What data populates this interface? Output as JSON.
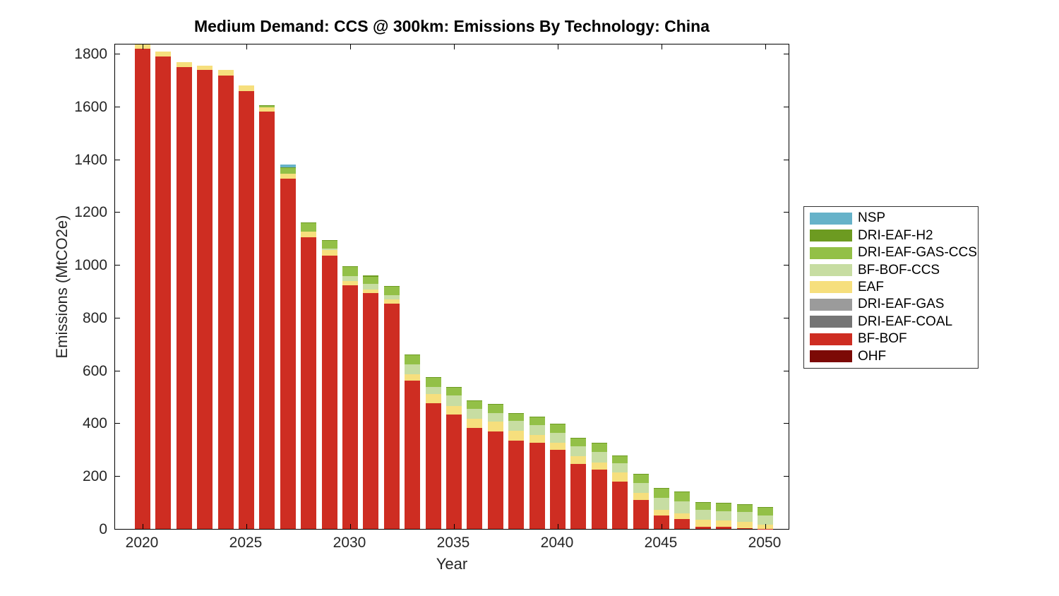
{
  "title": "Medium Demand: CCS @ 300km: Emissions By Technology: China",
  "xlabel": "Year",
  "ylabel": "Emissions (MtCO2e)",
  "chart_data": {
    "type": "bar",
    "stacked": true,
    "grid": false,
    "legend_position": "outside-right",
    "ylim": [
      0,
      1840
    ],
    "yticks": [
      0,
      200,
      400,
      600,
      800,
      1000,
      1200,
      1400,
      1600,
      1800
    ],
    "xticks": [
      2020,
      2025,
      2030,
      2035,
      2040,
      2045,
      2050
    ],
    "categories": [
      2020,
      2021,
      2022,
      2023,
      2024,
      2025,
      2026,
      2027,
      2028,
      2029,
      2030,
      2031,
      2032,
      2033,
      2034,
      2035,
      2036,
      2037,
      2038,
      2039,
      2040,
      2041,
      2042,
      2043,
      2044,
      2045,
      2046,
      2047,
      2048,
      2049,
      2050
    ],
    "series": [
      {
        "name": "OHF",
        "color": "#7C0A06",
        "values": [
          0,
          0,
          0,
          0,
          0,
          0,
          0,
          0,
          0,
          0,
          0,
          0,
          0,
          0,
          0,
          0,
          0,
          0,
          0,
          0,
          0,
          0,
          0,
          0,
          0,
          0,
          0,
          0,
          0,
          0,
          0
        ]
      },
      {
        "name": "BF-BOF",
        "color": "#CE2D22",
        "values": [
          1819,
          1788,
          1748,
          1738,
          1718,
          1659,
          1580,
          1327,
          1104,
          1035,
          924,
          892,
          852,
          563,
          477,
          434,
          383,
          370,
          334,
          327,
          299,
          246,
          225,
          180,
          109,
          51,
          38,
          9,
          7,
          4,
          1
        ]
      },
      {
        "name": "DRI-EAF-COAL",
        "color": "#757575",
        "values": [
          0,
          0,
          0,
          0,
          0,
          0,
          0,
          0,
          0,
          0,
          0,
          0,
          0,
          0,
          0,
          0,
          0,
          0,
          0,
          0,
          0,
          0,
          0,
          0,
          0,
          0,
          0,
          0,
          0,
          0,
          0
        ]
      },
      {
        "name": "DRI-EAF-GAS",
        "color": "#9B9B9B",
        "values": [
          0,
          0,
          0,
          0,
          0,
          0,
          0,
          0,
          0,
          0,
          0,
          0,
          0,
          0,
          0,
          0,
          0,
          0,
          0,
          0,
          0,
          0,
          0,
          0,
          0,
          0,
          0,
          0,
          0,
          0,
          0
        ]
      },
      {
        "name": "EAF",
        "color": "#F6DF7D",
        "values": [
          15,
          20,
          20,
          16,
          21,
          20,
          18,
          18,
          22,
          21,
          15,
          16,
          17,
          24,
          33,
          31,
          34,
          36,
          37,
          29,
          28,
          30,
          27,
          33,
          27,
          22,
          22,
          25,
          24,
          22,
          16
        ]
      },
      {
        "name": "BF-BOF-CCS",
        "color": "#C7DDA2",
        "values": [
          0,
          0,
          0,
          0,
          0,
          0,
          0,
          0,
          0,
          5,
          18,
          19,
          15,
          36,
          27,
          40,
          37,
          33,
          37,
          36,
          38,
          38,
          40,
          36,
          37,
          45,
          45,
          37,
          37,
          37,
          35
        ]
      },
      {
        "name": "DRI-EAF-GAS-CCS",
        "color": "#93C047",
        "values": [
          0,
          0,
          0,
          0,
          0,
          0,
          6,
          22,
          32,
          31,
          35,
          29,
          34,
          34,
          35,
          29,
          30,
          31,
          27,
          30,
          30,
          29,
          31,
          27,
          32,
          34,
          34,
          28,
          28,
          28,
          27
        ]
      },
      {
        "name": "DRI-EAF-H2",
        "color": "#6D9B21",
        "values": [
          0,
          0,
          0,
          0,
          0,
          0,
          2,
          2,
          3,
          3,
          3,
          3,
          3,
          3,
          3,
          3,
          3,
          3,
          3,
          3,
          3,
          3,
          3,
          3,
          3,
          3,
          3,
          3,
          3,
          3,
          3
        ]
      },
      {
        "name": "NSP",
        "color": "#66B2C9",
        "values": [
          0,
          0,
          0,
          0,
          0,
          0,
          0,
          10,
          0,
          0,
          0,
          0,
          0,
          0,
          0,
          0,
          0,
          0,
          0,
          0,
          0,
          0,
          0,
          0,
          0,
          0,
          0,
          0,
          0,
          0,
          0
        ]
      }
    ],
    "legend_top_to_bottom": [
      "NSP",
      "DRI-EAF-H2",
      "DRI-EAF-GAS-CCS",
      "BF-BOF-CCS",
      "EAF",
      "DRI-EAF-GAS",
      "DRI-EAF-COAL",
      "BF-BOF",
      "OHF"
    ]
  }
}
